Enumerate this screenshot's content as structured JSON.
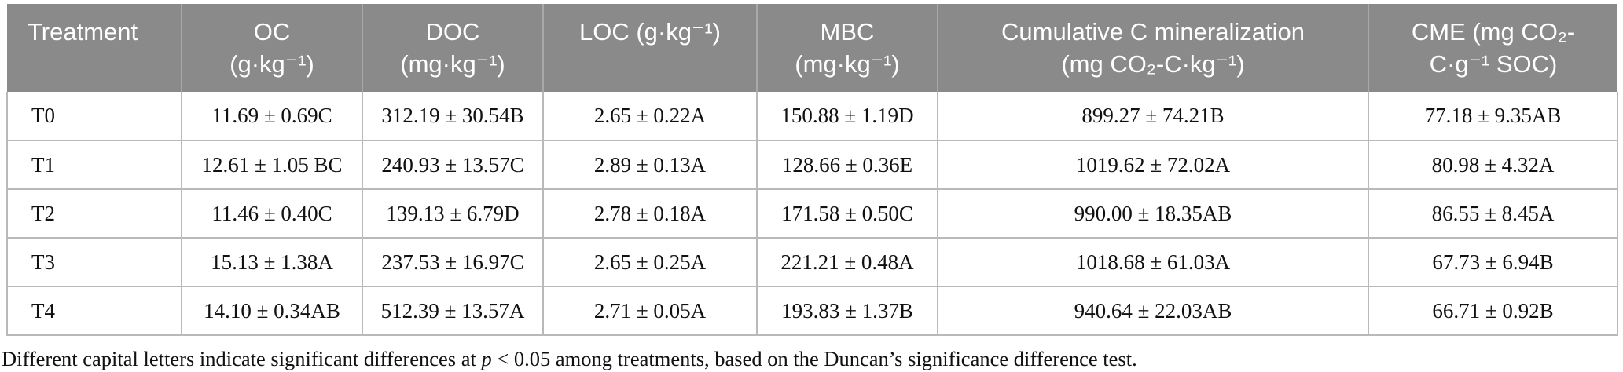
{
  "colors": {
    "header_bg": "#8a8a8a",
    "header_text": "#ffffff",
    "body_border": "#b9b9b9",
    "header_separator": "#a9a9a9"
  },
  "table": {
    "columns": [
      {
        "id": "treatment",
        "line1": "Treatment",
        "line2": ""
      },
      {
        "id": "oc",
        "line1": "OC",
        "line2": "(g·kg⁻¹)"
      },
      {
        "id": "doc",
        "line1": "DOC",
        "line2": "(mg·kg⁻¹)"
      },
      {
        "id": "loc",
        "line1": "LOC (g·kg⁻¹)",
        "line2": ""
      },
      {
        "id": "mbc",
        "line1": "MBC",
        "line2": "(mg·kg⁻¹)"
      },
      {
        "id": "cmin",
        "line1": "Cumulative C mineralization",
        "line2": "(mg CO₂-C·kg⁻¹)"
      },
      {
        "id": "cme",
        "line1": "CME (mg CO₂-",
        "line2": "C·g⁻¹ SOC)"
      }
    ],
    "rows": [
      {
        "treatment": "T0",
        "oc": "11.69 ± 0.69C",
        "doc": "312.19 ± 30.54B",
        "loc": "2.65 ± 0.22A",
        "mbc": "150.88 ± 1.19D",
        "cmin": "899.27 ± 74.21B",
        "cme": "77.18 ± 9.35AB"
      },
      {
        "treatment": "T1",
        "oc": "12.61 ± 1.05 BC",
        "doc": "240.93 ± 13.57C",
        "loc": "2.89 ± 0.13A",
        "mbc": "128.66 ± 0.36E",
        "cmin": "1019.62 ± 72.02A",
        "cme": "80.98 ± 4.32A"
      },
      {
        "treatment": "T2",
        "oc": "11.46 ± 0.40C",
        "doc": "139.13 ± 6.79D",
        "loc": "2.78 ± 0.18A",
        "mbc": "171.58 ± 0.50C",
        "cmin": "990.00 ± 18.35AB",
        "cme": "86.55 ± 8.45A"
      },
      {
        "treatment": "T3",
        "oc": "15.13 ± 1.38A",
        "doc": "237.53 ± 16.97C",
        "loc": "2.65 ± 0.25A",
        "mbc": "221.21 ± 0.48A",
        "cmin": "1018.68 ± 61.03A",
        "cme": "67.73 ± 6.94B"
      },
      {
        "treatment": "T4",
        "oc": "14.10 ± 0.34AB",
        "doc": "512.39 ± 13.57A",
        "loc": "2.71 ± 0.05A",
        "mbc": "193.83 ± 1.37B",
        "cmin": "940.64 ± 22.03AB",
        "cme": "66.71 ± 0.92B"
      }
    ]
  },
  "footnote": {
    "part1": "Different capital letters indicate significant differences at ",
    "p_symbol": "p",
    "part2": " < 0.05 among treatments, based on the Duncan’s significance difference test."
  }
}
